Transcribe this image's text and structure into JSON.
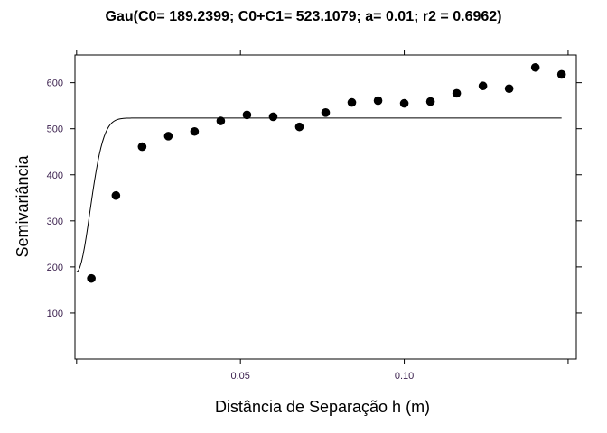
{
  "chart_data": {
    "type": "scatter",
    "title": "Gau(C0= 189.2399; C0+C1= 523.1079; a= 0.01; r2 = 0.6962)",
    "xlabel": "Distância de Separação h (m)",
    "ylabel": "Semivariância",
    "xlim": [
      -0.0005,
      0.1525
    ],
    "ylim": [
      0,
      660
    ],
    "x_ticks": [
      0.05,
      0.1
    ],
    "x_tick_labels": [
      "0.05",
      "0.10"
    ],
    "y_ticks": [
      100,
      200,
      300,
      400,
      500,
      600
    ],
    "y_tick_labels": [
      "100",
      "200",
      "300",
      "400",
      "500",
      "600"
    ],
    "grid": false,
    "series": [
      {
        "type": "scatter",
        "x": [
          0.0045,
          0.012,
          0.02,
          0.028,
          0.036,
          0.044,
          0.052,
          0.06,
          0.068,
          0.076,
          0.084,
          0.092,
          0.1,
          0.108,
          0.116,
          0.124,
          0.132,
          0.14,
          0.148
        ],
        "y": [
          175,
          355,
          461,
          484,
          494,
          517,
          530,
          526,
          504,
          535,
          557,
          561,
          555,
          559,
          577,
          593,
          587,
          633,
          618
        ]
      },
      {
        "type": "line",
        "model": "gaussian",
        "nugget": 189.2399,
        "sill": 523.1079,
        "range": 0.01,
        "x_range": [
          0,
          0.148
        ]
      }
    ]
  }
}
